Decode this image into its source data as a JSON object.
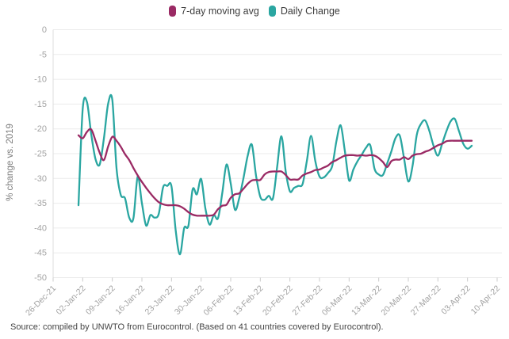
{
  "legend": [
    {
      "label": "7-day moving avg",
      "color": "#9a2a64"
    },
    {
      "label": "Daily Change",
      "color": "#2aa6a1"
    }
  ],
  "source_note": "Source: compiled by UNWTO from Eurocontrol. (Based on 41 countries covered by Eurocontrol).",
  "chart_data": {
    "type": "line",
    "title": "",
    "ylabel": "% change vs. 2019",
    "xlabel": "",
    "ylim": [
      -50,
      0
    ],
    "grid": true,
    "legend_position": "top",
    "y_ticks": [
      0,
      -5,
      -10,
      -15,
      -20,
      -25,
      -30,
      -35,
      -40,
      -45,
      -50
    ],
    "x_tick_labels": [
      "26-Dec-21",
      "02-Jan-22",
      "09-Jan-22",
      "16-Jan-22",
      "23-Jan-22",
      "30-Jan-22",
      "06-Feb-22",
      "13-Feb-22",
      "20-Feb-22",
      "27-Feb-22",
      "06-Mar-22",
      "13-Mar-22",
      "20-Mar-22",
      "27-Mar-22",
      "03-Apr-22",
      "10-Apr-22"
    ],
    "x_axis_start_label": "26-Dec-21",
    "series_start_date": "01-Jan-22",
    "x_step_days": 1,
    "series": [
      {
        "name": "Daily Change",
        "color": "#2aa6a1",
        "values": [
          -35.4,
          -16,
          -14.6,
          -21,
          -26,
          -27.2,
          -22,
          -15,
          -14.2,
          -28,
          -33.3,
          -34,
          -37.9,
          -38,
          -29.6,
          -35,
          -39.5,
          -37.4,
          -37.9,
          -37.1,
          -31.8,
          -31.5,
          -31.6,
          -40.6,
          -45.3,
          -40,
          -39.5,
          -32.2,
          -33.2,
          -30.1,
          -36,
          -39.3,
          -37.4,
          -38,
          -33,
          -27.2,
          -31,
          -36.3,
          -34,
          -30,
          -25.5,
          -23.2,
          -29.5,
          -33.7,
          -34.3,
          -33.5,
          -34,
          -27.5,
          -21.5,
          -28.5,
          -32.6,
          -31.9,
          -31.5,
          -31.1,
          -26.5,
          -21.4,
          -26.5,
          -29.6,
          -29.8,
          -28.9,
          -27.5,
          -22.5,
          -19.3,
          -24.5,
          -30.4,
          -28.2,
          -26.5,
          -25.2,
          -23.8,
          -23.3,
          -28,
          -29.2,
          -29.3,
          -27,
          -24.5,
          -21.8,
          -21.4,
          -26,
          -30.6,
          -27.5,
          -21.2,
          -19,
          -18.3,
          -20.5,
          -23.5,
          -25.4,
          -23,
          -20.5,
          -18.5,
          -18,
          -20.5,
          -23,
          -24,
          -23.4
        ]
      },
      {
        "name": "7-day moving avg",
        "color": "#9a2a64",
        "values": [
          -21.3,
          -21.9,
          -20.6,
          -20.1,
          -22.3,
          -24.8,
          -26.3,
          -23.6,
          -21.6,
          -22.4,
          -23.6,
          -25.1,
          -26.3,
          -27.9,
          -29.4,
          -30.7,
          -31.9,
          -33,
          -34,
          -34.8,
          -35.2,
          -35.4,
          -35.4,
          -35.4,
          -35.6,
          -36.1,
          -36.8,
          -37.3,
          -37.5,
          -37.5,
          -37.5,
          -37.5,
          -37.3,
          -36.2,
          -35.5,
          -35.3,
          -33.9,
          -33.2,
          -33,
          -32.1,
          -31.1,
          -30.4,
          -30.3,
          -30.3,
          -29.2,
          -28.7,
          -28.6,
          -28.6,
          -28.6,
          -29.3,
          -30.2,
          -30.2,
          -30.2,
          -29.4,
          -29,
          -28.7,
          -28.3,
          -28.2,
          -27.8,
          -27.4,
          -26.7,
          -26.3,
          -25.8,
          -25.4,
          -25.3,
          -25.3,
          -25.4,
          -25.3,
          -25.4,
          -25.3,
          -25.4,
          -25.9,
          -26.7,
          -27.7,
          -26.5,
          -26.2,
          -26.2,
          -25.7,
          -26.1,
          -25.4,
          -25.1,
          -25,
          -24.6,
          -24.3,
          -23.8,
          -23.3,
          -23,
          -22.5,
          -22.4,
          -22.4,
          -22.4,
          -22.4,
          -22.4,
          -22.4
        ]
      }
    ]
  }
}
